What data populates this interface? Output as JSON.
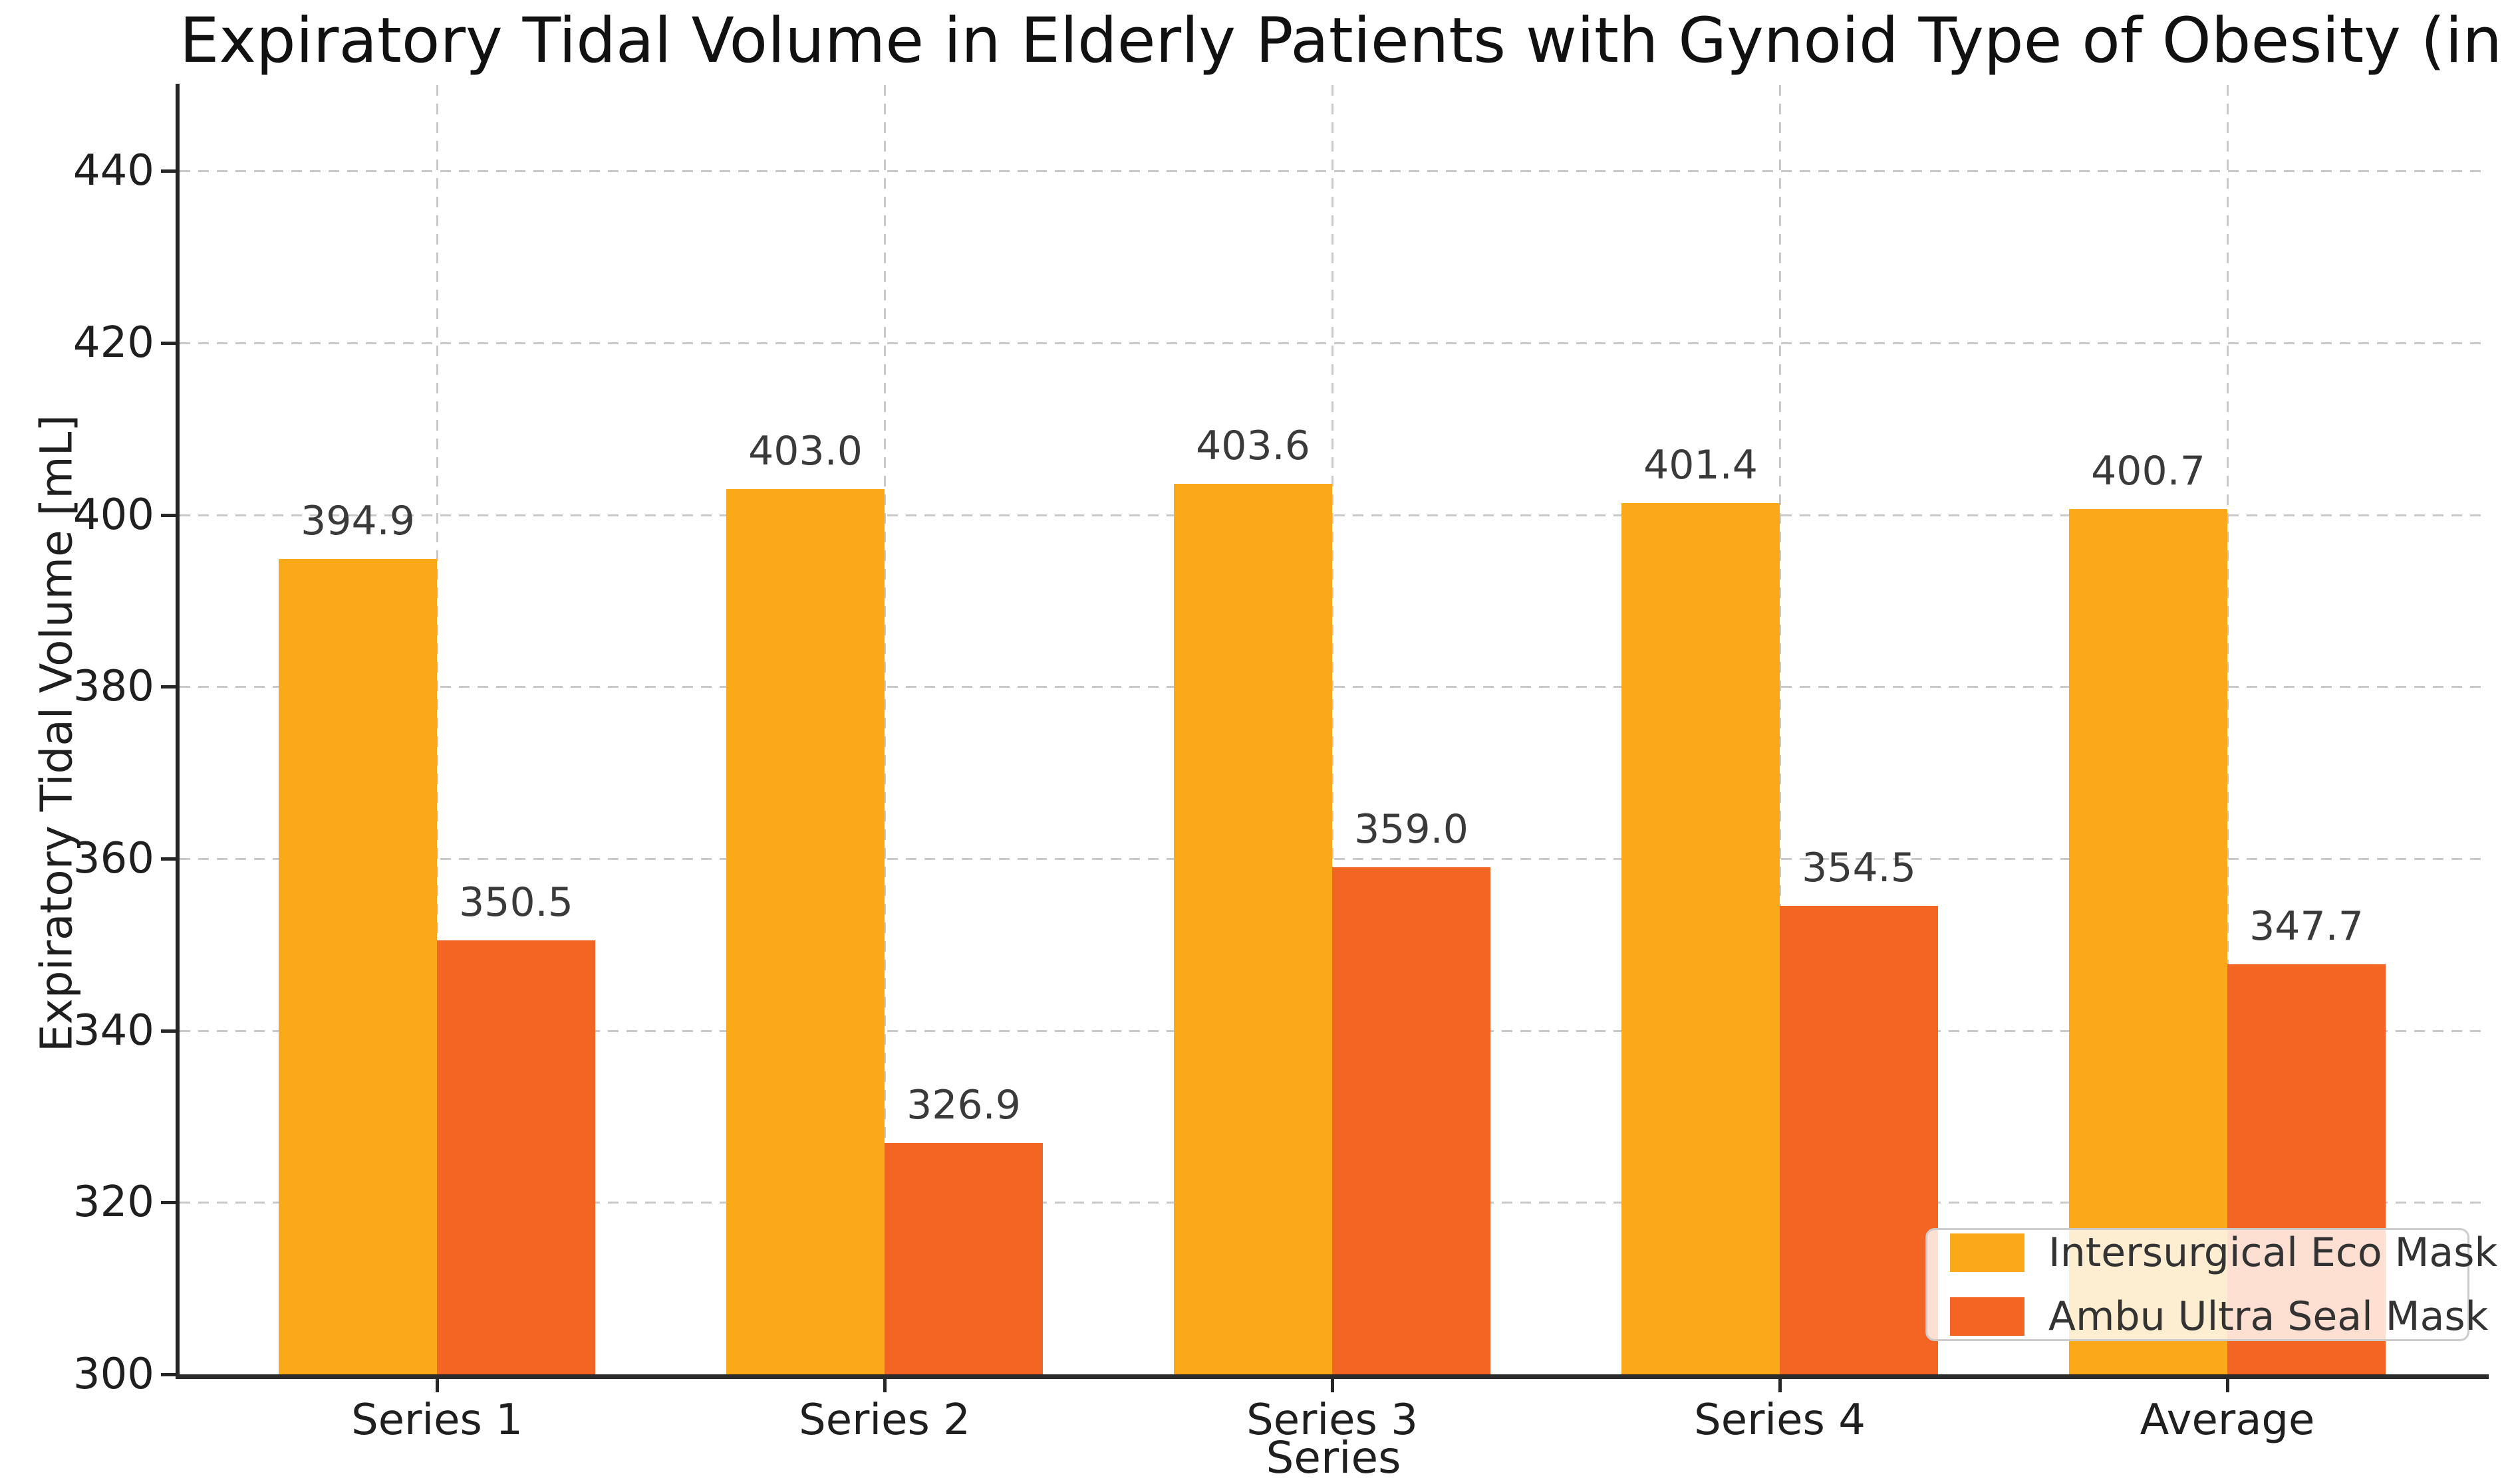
{
  "title": "Expiratory Tidal Volume in Elderly Patients with Gynoid Type of Obesity (in mL)",
  "chart_data": {
    "type": "bar",
    "title": "Expiratory Tidal Volume in Elderly Patients with Gynoid Type of Obesity (in mL)",
    "xlabel": "Series",
    "ylabel": "Expiratory Tidal Volume [mL]",
    "categories": [
      "Series 1",
      "Series 2",
      "Series 3",
      "Series 4",
      "Average"
    ],
    "series": [
      {
        "name": "Intersurgical Eco Mask II",
        "color": "#FBA819",
        "values": [
          394.9,
          403.0,
          403.6,
          401.4,
          400.7
        ]
      },
      {
        "name": "Ambu Ultra Seal Mask",
        "color": "#F26522",
        "values": [
          350.5,
          326.9,
          359.0,
          354.5,
          347.7
        ]
      }
    ],
    "ylim": [
      300,
      450
    ],
    "yticks": [
      300,
      320,
      340,
      360,
      380,
      400,
      420,
      440
    ],
    "grid": true,
    "grid_style": "dashed",
    "legend_position": "lower right",
    "value_label_decimals": 1,
    "bar_value_labels": true
  },
  "colors": {
    "background": "#ffffff",
    "series1": "#FBA819",
    "series2": "#F26522",
    "gridline": "#c9c9c9",
    "spine": "#262626",
    "text": "#1f1f1f"
  }
}
